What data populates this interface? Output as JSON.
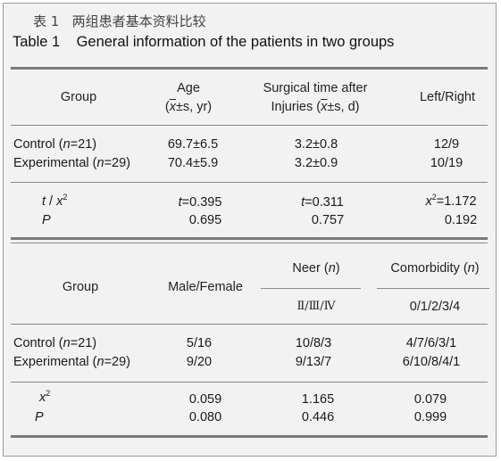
{
  "title": {
    "zh_label": "表 1",
    "zh_text": "两组患者基本资料比较",
    "en_label": "Table 1",
    "en_text": "General information of the patients in two groups"
  },
  "table1": {
    "headers": {
      "group": "Group",
      "age_line1": "Age",
      "age_xbar": "x",
      "age_rest": "±s, yr)",
      "surg_line1": "Surgical time after",
      "surg_line2a": "Injuries (",
      "surg_xbar": "x",
      "surg_rest": "±s, d)",
      "lr": "Left/Right"
    },
    "rows": [
      {
        "name": "Control (",
        "n": "n",
        "count": "=21)",
        "age": "69.7±6.5",
        "surg": "3.2±0.8",
        "lr": "12/9"
      },
      {
        "name": "Experimental (",
        "n": "n",
        "count": "=29)",
        "age": "70.4±5.9",
        "surg": "3.2±0.9",
        "lr": "10/19"
      }
    ],
    "stats": {
      "label1_t": "t",
      "label1_sep": " / ",
      "label1_x": "x",
      "label1_sup": "2",
      "label2": "P",
      "age_stat_var": "t",
      "age_stat_val": "=0.395",
      "surg_stat_var": "t",
      "surg_stat_val": "=0.311",
      "lr_stat_var": "x",
      "lr_stat_sup": "2",
      "lr_stat_val": "=1.172",
      "age_p": "0.695",
      "surg_p": "0.757",
      "lr_p": "0.192"
    }
  },
  "table2": {
    "headers": {
      "group": "Group",
      "sex": "Male/Female",
      "neer_label": "Neer (",
      "neer_n": "n",
      "neer_close": ")",
      "neer_sub": "Ⅱ/Ⅲ/Ⅳ",
      "comorb_label": "Comorbidity (",
      "comorb_n": "n",
      "comorb_close": ")",
      "comorb_sub": "0/1/2/3/4"
    },
    "rows": [
      {
        "name": "Control (",
        "n": "n",
        "count": "=21)",
        "sex": "5/16",
        "neer": "10/8/3",
        "comorb": "4/7/6/3/1"
      },
      {
        "name": "Experimental (",
        "n": "n",
        "count": "=29)",
        "sex": "9/20",
        "neer": "9/13/7",
        "comorb": "6/10/8/4/1"
      }
    ],
    "stats": {
      "label1_x": "x",
      "label1_sup": "2",
      "label2": "P",
      "sex_stat": "0.059",
      "neer_stat": "1.165",
      "comorb_stat": "0.079",
      "sex_p": "0.080",
      "neer_p": "0.446",
      "comorb_p": "0.999"
    }
  },
  "colors": {
    "background": "#f2f2f2",
    "rule": "#7a7a7a",
    "border": "#9a9a9a"
  }
}
